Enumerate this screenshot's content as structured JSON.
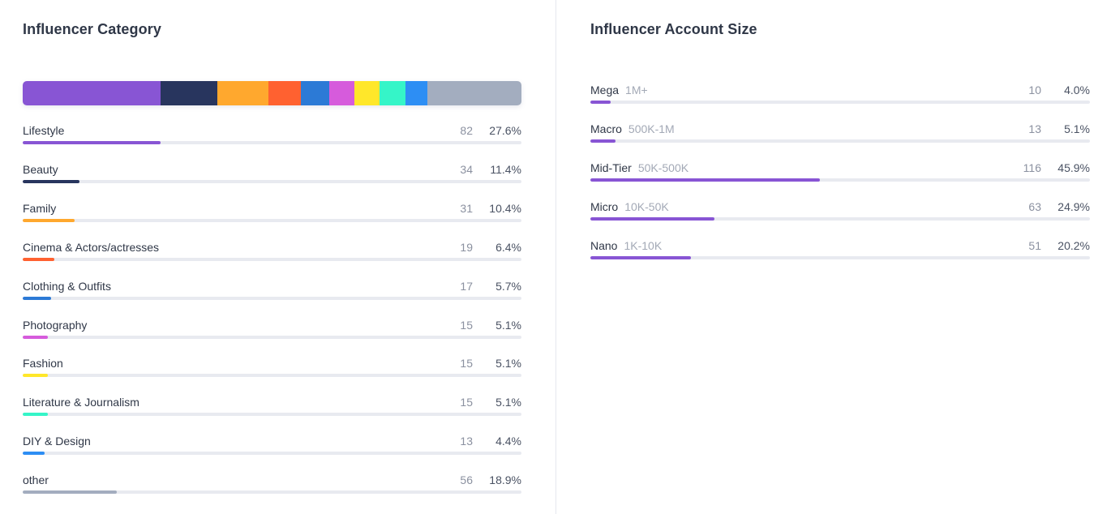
{
  "category": {
    "title": "Influencer Category",
    "items": [
      {
        "label": "Lifestyle",
        "count": "82",
        "pct": "27.6%",
        "value": 27.6,
        "color": "#8855d4"
      },
      {
        "label": "Beauty",
        "count": "34",
        "pct": "11.4%",
        "value": 11.4,
        "color": "#28355e"
      },
      {
        "label": "Family",
        "count": "31",
        "pct": "10.4%",
        "value": 10.4,
        "color": "#ffa82e"
      },
      {
        "label": "Cinema & Actors/actresses",
        "count": "19",
        "pct": "6.4%",
        "value": 6.4,
        "color": "#ff6130"
      },
      {
        "label": "Clothing & Outfits",
        "count": "17",
        "pct": "5.7%",
        "value": 5.7,
        "color": "#2c7ad6"
      },
      {
        "label": "Photography",
        "count": "15",
        "pct": "5.1%",
        "value": 5.1,
        "color": "#d65bdc"
      },
      {
        "label": "Fashion",
        "count": "15",
        "pct": "5.1%",
        "value": 5.1,
        "color": "#ffe72a"
      },
      {
        "label": "Literature & Journalism",
        "count": "15",
        "pct": "5.1%",
        "value": 5.1,
        "color": "#35f5c8"
      },
      {
        "label": "DIY & Design",
        "count": "13",
        "pct": "4.4%",
        "value": 4.4,
        "color": "#2d8ef4"
      },
      {
        "label": "other",
        "count": "56",
        "pct": "18.9%",
        "value": 18.9,
        "color": "#a3adbf"
      }
    ]
  },
  "account_size": {
    "title": "Influencer Account Size",
    "color": "#8855d4",
    "items": [
      {
        "label": "Mega",
        "range": "1M+",
        "count": "10",
        "pct": "4.0%",
        "value": 4.0
      },
      {
        "label": "Macro",
        "range": "500K-1M",
        "count": "13",
        "pct": "5.1%",
        "value": 5.1
      },
      {
        "label": "Mid-Tier",
        "range": "50K-500K",
        "count": "116",
        "pct": "45.9%",
        "value": 45.9
      },
      {
        "label": "Micro",
        "range": "10K-50K",
        "count": "63",
        "pct": "24.9%",
        "value": 24.9
      },
      {
        "label": "Nano",
        "range": "1K-10K",
        "count": "51",
        "pct": "20.2%",
        "value": 20.2
      }
    ]
  }
}
